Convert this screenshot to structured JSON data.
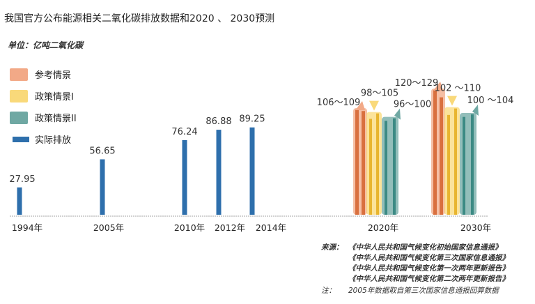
{
  "chart_data": {
    "type": "bar",
    "title": "我国官方公布能源相关二氧化碳排放数据和2020 、 2030预测",
    "unit_label": "单位：亿吨二氧化碳",
    "x_ticks": [
      "1994年",
      "2005年",
      "2010年",
      "2012年",
      "2014年",
      "2020年",
      "2030年"
    ],
    "legend": [
      {
        "key": "ref",
        "label": "参考情景",
        "color": "#f2a987"
      },
      {
        "key": "policy1",
        "label": "政策情景I",
        "color": "#f9d97a"
      },
      {
        "key": "policy2",
        "label": "政策情景II",
        "color": "#6fa8a3"
      },
      {
        "key": "actual",
        "label": "实际排放",
        "color": "#2e6fac"
      }
    ],
    "actual": [
      {
        "year": "1994年",
        "value": 27.95,
        "label": "27.95"
      },
      {
        "year": "2005年",
        "value": 56.65,
        "label": "56.65"
      },
      {
        "year": "2010年",
        "value": 76.24,
        "label": "76.24"
      },
      {
        "year": "2012年",
        "value": 86.88,
        "label": "86.88"
      },
      {
        "year": "2014年",
        "value": 89.25,
        "label": "89.25"
      }
    ],
    "scenarios": [
      {
        "year": "2020年",
        "ref": {
          "min": 106,
          "max": 109,
          "label": "106～109"
        },
        "policy1": {
          "min": 98,
          "max": 105,
          "label": "98～105"
        },
        "policy2": {
          "min": 96,
          "max": 100,
          "label": "96～100"
        }
      },
      {
        "year": "2030年",
        "ref": {
          "min": 120,
          "max": 129,
          "label": "120～129"
        },
        "policy1": {
          "min": 102,
          "max": 110,
          "label": "102 ～110"
        },
        "policy2": {
          "min": 100,
          "max": 104,
          "label": "100 ～104"
        }
      }
    ],
    "ylim": [
      0,
      140
    ],
    "grid": false,
    "legend_position": "top-left"
  },
  "source": {
    "label": "来源：",
    "lines": [
      "《中华人民共和国气候变化初始国家信息通报》",
      "《中华人民共和国气候变化第三次国家信息通报》",
      "《中华人民共和国气候变化第一次两年更新报告》",
      "《中华人民共和国气候变化第二次两年更新报告》"
    ]
  },
  "note": {
    "label": "注：",
    "text": "2005年数据取自第三次国家信息通报回算数据"
  }
}
